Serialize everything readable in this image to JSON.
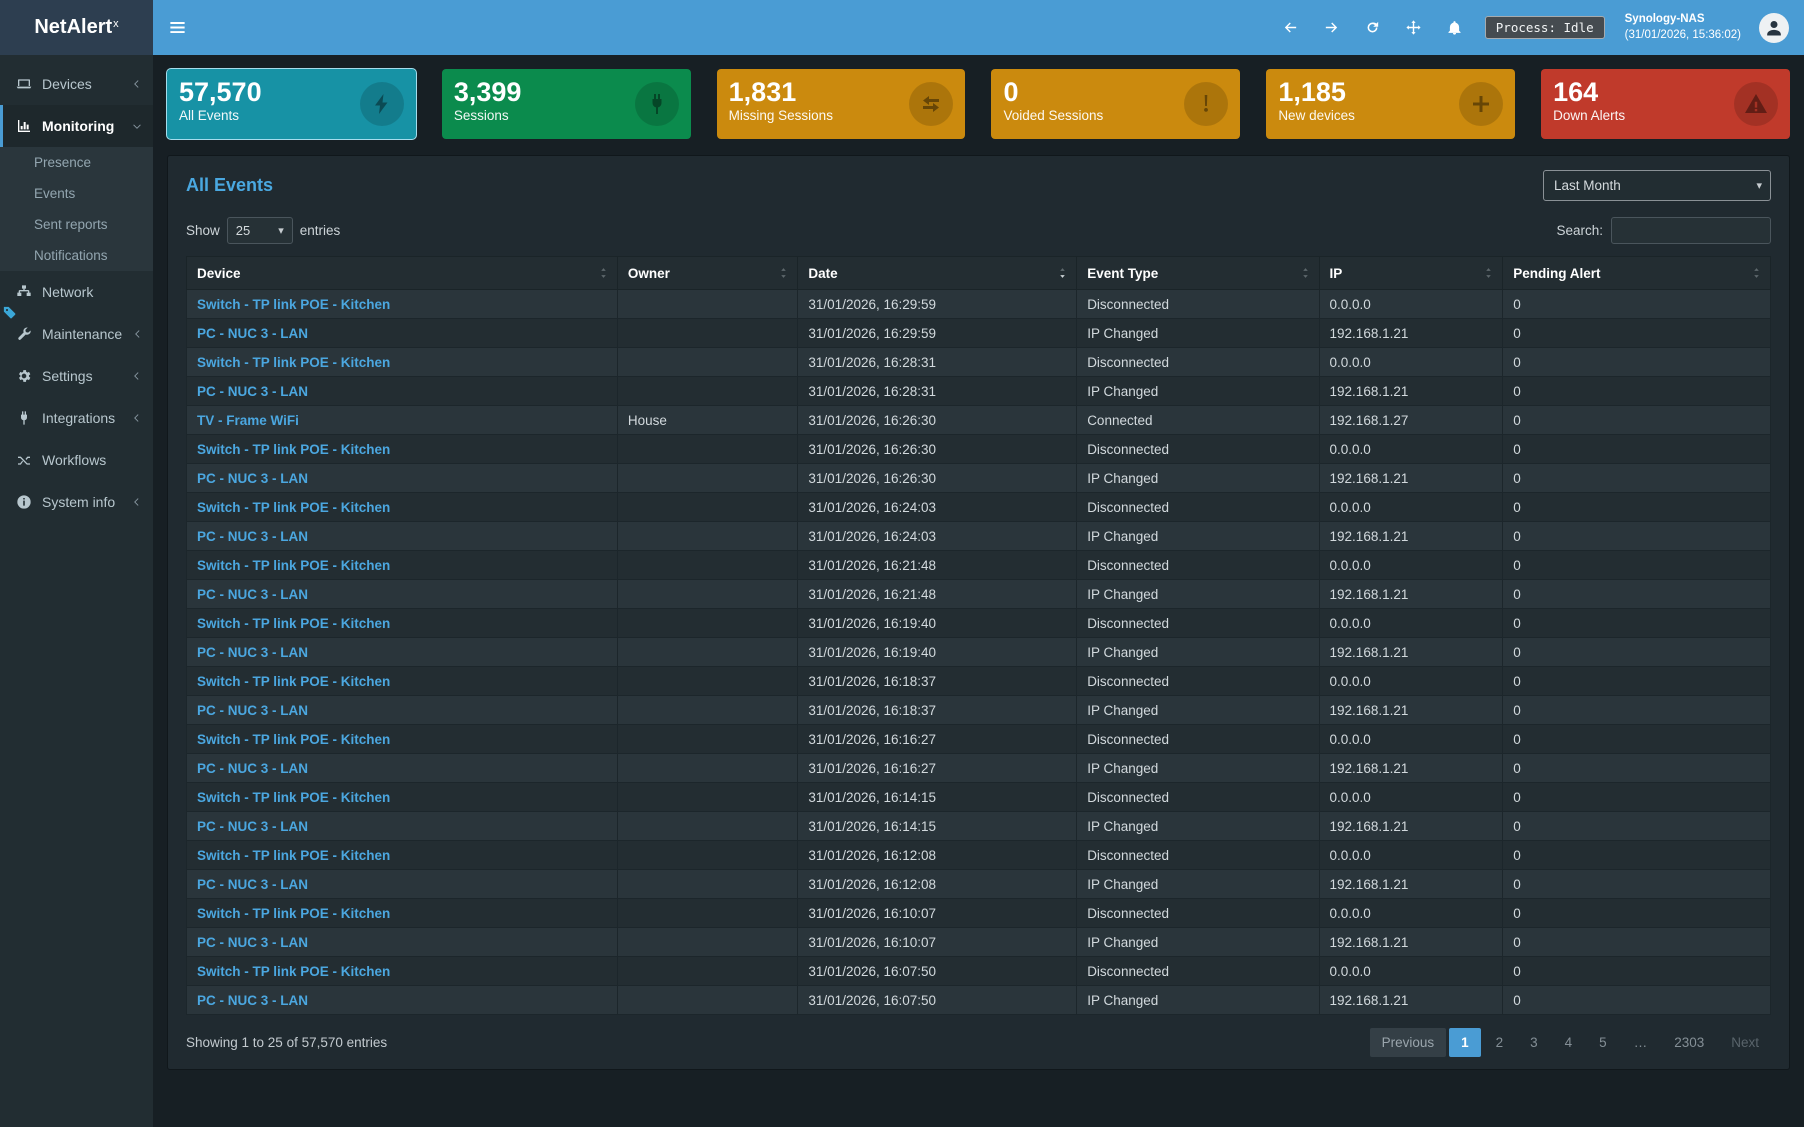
{
  "brand": {
    "name": "NetAlert",
    "sup": "x"
  },
  "topbar": {
    "process": "Process: Idle",
    "host": "Synology-NAS",
    "time": "(31/01/2026, 15:36:02)",
    "nav_icons": [
      "arrow-left-icon",
      "arrow-right-icon",
      "refresh-icon",
      "move-icon",
      "bell-icon"
    ]
  },
  "sidebar": {
    "items": [
      {
        "label": "Devices",
        "icon": "laptop-icon",
        "chevron": "left"
      },
      {
        "label": "Monitoring",
        "icon": "chart-icon",
        "chevron": "down",
        "active": true,
        "children": [
          "Presence",
          "Events",
          "Sent reports",
          "Notifications"
        ]
      },
      {
        "label": "Network",
        "icon": "network-icon"
      },
      {
        "label": "Maintenance",
        "icon": "wrench-icon",
        "chevron": "left"
      },
      {
        "label": "Settings",
        "icon": "gear-icon",
        "chevron": "left"
      },
      {
        "label": "Integrations",
        "icon": "plug-icon",
        "chevron": "left"
      },
      {
        "label": "Workflows",
        "icon": "shuffle-icon"
      },
      {
        "label": "System info",
        "icon": "info-icon",
        "chevron": "left"
      }
    ]
  },
  "cards": [
    {
      "value": "57,570",
      "label": "All Events",
      "color": "#1792a5",
      "icon": "bolt-icon",
      "highlight": true
    },
    {
      "value": "3,399",
      "label": "Sessions",
      "color": "#0b8b4d",
      "icon": "plug-icon"
    },
    {
      "value": "1,831",
      "label": "Missing Sessions",
      "color": "#cb8a0e",
      "icon": "exchange-icon"
    },
    {
      "value": "0",
      "label": "Voided Sessions",
      "color": "#cb8a0e",
      "icon": "exclamation-icon"
    },
    {
      "value": "1,185",
      "label": "New devices",
      "color": "#cb8a0e",
      "icon": "plus-icon"
    },
    {
      "value": "164",
      "label": "Down Alerts",
      "color": "#c03a2b",
      "icon": "warning-icon"
    }
  ],
  "panel": {
    "title": "All Events",
    "period": "Last Month"
  },
  "controls": {
    "show_label": "Show",
    "page_length": "25",
    "entries_label": "entries",
    "search_label": "Search:"
  },
  "table": {
    "columns": [
      {
        "label": "Device",
        "sort": "none"
      },
      {
        "label": "Owner",
        "sort": "none"
      },
      {
        "label": "Date",
        "sort": "desc"
      },
      {
        "label": "Event Type",
        "sort": "none"
      },
      {
        "label": "IP",
        "sort": "none"
      },
      {
        "label": "Pending Alert",
        "sort": "none"
      }
    ],
    "rows": [
      [
        "Switch - TP link POE - Kitchen",
        "",
        "31/01/2026, 16:29:59",
        "Disconnected",
        "0.0.0.0",
        "0"
      ],
      [
        "PC - NUC 3 - LAN",
        "",
        "31/01/2026, 16:29:59",
        "IP Changed",
        "192.168.1.21",
        "0"
      ],
      [
        "Switch - TP link POE - Kitchen",
        "",
        "31/01/2026, 16:28:31",
        "Disconnected",
        "0.0.0.0",
        "0"
      ],
      [
        "PC - NUC 3 - LAN",
        "",
        "31/01/2026, 16:28:31",
        "IP Changed",
        "192.168.1.21",
        "0"
      ],
      [
        "TV - Frame WiFi",
        "House",
        "31/01/2026, 16:26:30",
        "Connected",
        "192.168.1.27",
        "0"
      ],
      [
        "Switch - TP link POE - Kitchen",
        "",
        "31/01/2026, 16:26:30",
        "Disconnected",
        "0.0.0.0",
        "0"
      ],
      [
        "PC - NUC 3 - LAN",
        "",
        "31/01/2026, 16:26:30",
        "IP Changed",
        "192.168.1.21",
        "0"
      ],
      [
        "Switch - TP link POE - Kitchen",
        "",
        "31/01/2026, 16:24:03",
        "Disconnected",
        "0.0.0.0",
        "0"
      ],
      [
        "PC - NUC 3 - LAN",
        "",
        "31/01/2026, 16:24:03",
        "IP Changed",
        "192.168.1.21",
        "0"
      ],
      [
        "Switch - TP link POE - Kitchen",
        "",
        "31/01/2026, 16:21:48",
        "Disconnected",
        "0.0.0.0",
        "0"
      ],
      [
        "PC - NUC 3 - LAN",
        "",
        "31/01/2026, 16:21:48",
        "IP Changed",
        "192.168.1.21",
        "0"
      ],
      [
        "Switch - TP link POE - Kitchen",
        "",
        "31/01/2026, 16:19:40",
        "Disconnected",
        "0.0.0.0",
        "0"
      ],
      [
        "PC - NUC 3 - LAN",
        "",
        "31/01/2026, 16:19:40",
        "IP Changed",
        "192.168.1.21",
        "0"
      ],
      [
        "Switch - TP link POE - Kitchen",
        "",
        "31/01/2026, 16:18:37",
        "Disconnected",
        "0.0.0.0",
        "0"
      ],
      [
        "PC - NUC 3 - LAN",
        "",
        "31/01/2026, 16:18:37",
        "IP Changed",
        "192.168.1.21",
        "0"
      ],
      [
        "Switch - TP link POE - Kitchen",
        "",
        "31/01/2026, 16:16:27",
        "Disconnected",
        "0.0.0.0",
        "0"
      ],
      [
        "PC - NUC 3 - LAN",
        "",
        "31/01/2026, 16:16:27",
        "IP Changed",
        "192.168.1.21",
        "0"
      ],
      [
        "Switch - TP link POE - Kitchen",
        "",
        "31/01/2026, 16:14:15",
        "Disconnected",
        "0.0.0.0",
        "0"
      ],
      [
        "PC - NUC 3 - LAN",
        "",
        "31/01/2026, 16:14:15",
        "IP Changed",
        "192.168.1.21",
        "0"
      ],
      [
        "Switch - TP link POE - Kitchen",
        "",
        "31/01/2026, 16:12:08",
        "Disconnected",
        "0.0.0.0",
        "0"
      ],
      [
        "PC - NUC 3 - LAN",
        "",
        "31/01/2026, 16:12:08",
        "IP Changed",
        "192.168.1.21",
        "0"
      ],
      [
        "Switch - TP link POE - Kitchen",
        "",
        "31/01/2026, 16:10:07",
        "Disconnected",
        "0.0.0.0",
        "0"
      ],
      [
        "PC - NUC 3 - LAN",
        "",
        "31/01/2026, 16:10:07",
        "IP Changed",
        "192.168.1.21",
        "0"
      ],
      [
        "Switch - TP link POE - Kitchen",
        "",
        "31/01/2026, 16:07:50",
        "Disconnected",
        "0.0.0.0",
        "0"
      ],
      [
        "PC - NUC 3 - LAN",
        "",
        "31/01/2026, 16:07:50",
        "IP Changed",
        "192.168.1.21",
        "0"
      ]
    ]
  },
  "footer": {
    "info": "Showing 1 to 25 of 57,570 entries"
  },
  "pagination": [
    {
      "label": "Previous",
      "state": "prev"
    },
    {
      "label": "1",
      "state": "active"
    },
    {
      "label": "2",
      "state": ""
    },
    {
      "label": "3",
      "state": ""
    },
    {
      "label": "4",
      "state": ""
    },
    {
      "label": "5",
      "state": ""
    },
    {
      "label": "…",
      "state": "ellipsis"
    },
    {
      "label": "2303",
      "state": ""
    },
    {
      "label": "Next",
      "state": "disabled"
    }
  ]
}
